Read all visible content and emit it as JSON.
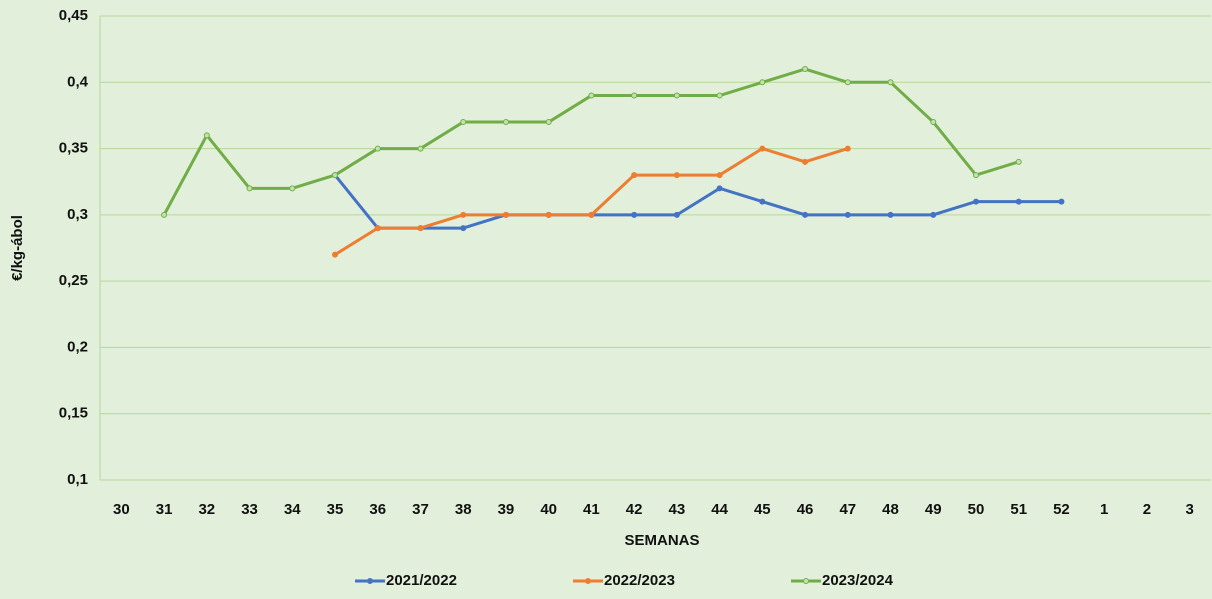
{
  "chart_data": {
    "type": "line",
    "x_label": "SEMANAS",
    "y_label": "€/kg-ábol",
    "categories": [
      "30",
      "31",
      "32",
      "33",
      "34",
      "35",
      "36",
      "37",
      "38",
      "39",
      "40",
      "41",
      "42",
      "43",
      "44",
      "45",
      "46",
      "47",
      "48",
      "49",
      "50",
      "51",
      "52",
      "1",
      "2",
      "3"
    ],
    "series": [
      {
        "name": "2021/2022",
        "color": "#4472c4",
        "values": [
          null,
          null,
          null,
          null,
          null,
          0.33,
          0.29,
          0.29,
          0.29,
          0.3,
          0.3,
          0.3,
          0.3,
          0.3,
          0.32,
          0.31,
          0.3,
          0.3,
          0.3,
          0.3,
          0.31,
          0.31,
          0.31,
          null,
          null,
          null
        ]
      },
      {
        "name": "2022/2023",
        "color": "#ed7d31",
        "values": [
          null,
          null,
          null,
          null,
          null,
          0.27,
          0.29,
          0.29,
          0.3,
          0.3,
          0.3,
          0.3,
          0.33,
          0.33,
          0.33,
          0.35,
          0.34,
          0.35,
          null,
          null,
          null,
          null,
          null,
          null,
          null,
          null
        ]
      },
      {
        "name": "2023/2024",
        "color": "#70ad47",
        "values": [
          null,
          0.3,
          0.36,
          0.32,
          0.32,
          0.33,
          0.35,
          0.35,
          0.37,
          0.37,
          0.37,
          0.39,
          0.39,
          0.39,
          0.39,
          0.4,
          0.41,
          0.4,
          0.4,
          0.37,
          0.33,
          0.34,
          null,
          null,
          null,
          null
        ]
      }
    ],
    "ylim": [
      0.1,
      0.45
    ],
    "yticks": [
      {
        "value": 0.1,
        "label": "0,1"
      },
      {
        "value": 0.15,
        "label": "0,15"
      },
      {
        "value": 0.2,
        "label": "0,2"
      },
      {
        "value": 0.25,
        "label": "0,25"
      },
      {
        "value": 0.3,
        "label": "0,3"
      },
      {
        "value": 0.35,
        "label": "0,35"
      },
      {
        "value": 0.4,
        "label": "0,4"
      },
      {
        "value": 0.45,
        "label": "0,45"
      }
    ],
    "grid": true,
    "legend": "bottom"
  }
}
